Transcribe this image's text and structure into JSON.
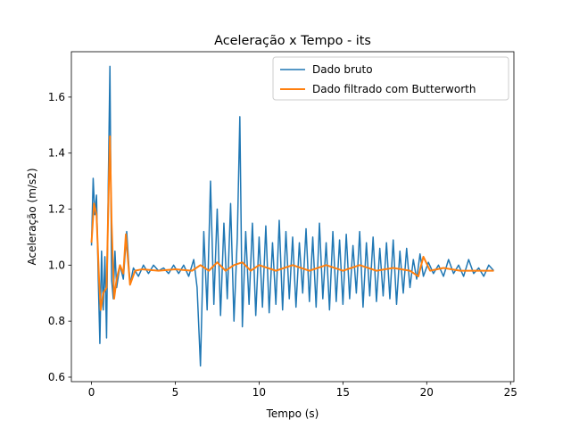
{
  "chart_data": {
    "type": "line",
    "title": "Aceleração x Tempo - its",
    "x_label": "Tempo (s)",
    "y_label": "Aceleração (m/s2)",
    "xlim": [
      -1.2,
      25.2
    ],
    "ylim": [
      0.584,
      1.762
    ],
    "xticks": [
      0,
      5,
      10,
      15,
      20,
      25
    ],
    "yticks": [
      0.6,
      0.8,
      {
        "value": 1,
        "label": "1.0"
      },
      1.2,
      1.4,
      1.6
    ],
    "grid": false,
    "legend": "upper right",
    "series": [
      {
        "name": "Dado bruto",
        "color": "#1f77b4",
        "width": 1.5,
        "x": [
          0,
          0.1,
          0.2,
          0.3,
          0.4,
          0.5,
          0.6,
          0.7,
          0.8,
          0.9,
          1.0,
          1.1,
          1.2,
          1.3,
          1.4,
          1.5,
          1.7,
          1.9,
          2.1,
          2.3,
          2.5,
          2.8,
          3.1,
          3.4,
          3.7,
          4.0,
          4.3,
          4.6,
          4.9,
          5.2,
          5.5,
          5.8,
          6.1,
          6.3,
          6.5,
          6.7,
          6.9,
          7.1,
          7.3,
          7.5,
          7.7,
          7.9,
          8.1,
          8.3,
          8.5,
          8.7,
          8.85,
          9.0,
          9.2,
          9.4,
          9.6,
          9.8,
          10.0,
          10.2,
          10.4,
          10.6,
          10.8,
          11.0,
          11.2,
          11.4,
          11.6,
          11.8,
          12.0,
          12.2,
          12.4,
          12.6,
          12.8,
          13.0,
          13.2,
          13.4,
          13.6,
          13.8,
          14.0,
          14.2,
          14.4,
          14.6,
          14.8,
          15.0,
          15.2,
          15.4,
          15.6,
          15.8,
          16.0,
          16.2,
          16.4,
          16.6,
          16.8,
          17.0,
          17.2,
          17.4,
          17.6,
          17.8,
          18.0,
          18.2,
          18.4,
          18.6,
          18.8,
          19.0,
          19.2,
          19.4,
          19.6,
          19.8,
          20.1,
          20.4,
          20.7,
          21.0,
          21.3,
          21.6,
          21.9,
          22.2,
          22.5,
          22.8,
          23.1,
          23.4,
          23.7,
          24.0
        ],
        "values": [
          1.07,
          1.31,
          1.18,
          1.25,
          0.96,
          0.72,
          1.05,
          0.84,
          1.03,
          0.74,
          1.28,
          1.71,
          0.95,
          0.88,
          1.05,
          0.92,
          1.0,
          0.95,
          1.12,
          0.93,
          0.99,
          0.96,
          1.0,
          0.97,
          1.0,
          0.98,
          0.99,
          0.97,
          1.0,
          0.97,
          1.0,
          0.96,
          1.02,
          0.92,
          0.64,
          1.12,
          0.84,
          1.3,
          0.86,
          1.2,
          0.82,
          1.15,
          0.88,
          1.22,
          0.8,
          1.1,
          1.53,
          0.78,
          1.12,
          0.86,
          1.15,
          0.82,
          1.1,
          0.85,
          1.14,
          0.83,
          1.08,
          0.86,
          1.16,
          0.84,
          1.12,
          0.88,
          1.1,
          0.85,
          1.08,
          0.9,
          1.13,
          0.87,
          1.1,
          0.85,
          1.15,
          0.88,
          1.08,
          0.84,
          1.12,
          0.87,
          1.09,
          0.86,
          1.11,
          0.88,
          1.07,
          0.9,
          1.12,
          0.85,
          1.08,
          0.89,
          1.1,
          0.87,
          1.06,
          0.89,
          1.08,
          0.88,
          1.09,
          0.86,
          1.05,
          0.9,
          1.06,
          0.92,
          1.02,
          0.95,
          1.04,
          0.96,
          1.01,
          0.97,
          1.0,
          0.96,
          1.02,
          0.97,
          1.0,
          0.96,
          1.02,
          0.97,
          0.99,
          0.96,
          1.0,
          0.98
        ]
      },
      {
        "name": "Dado filtrado com Butterworth",
        "color": "#ff7f0e",
        "width": 2,
        "x": [
          0,
          0.15,
          0.3,
          0.45,
          0.55,
          0.7,
          0.9,
          1.0,
          1.1,
          1.2,
          1.35,
          1.5,
          1.7,
          1.9,
          2.05,
          2.3,
          2.6,
          3.0,
          4,
          5,
          6,
          6.5,
          7,
          7.5,
          8,
          8.5,
          9,
          9.5,
          10,
          11,
          12,
          13,
          14,
          15,
          16,
          17,
          18,
          19,
          19.5,
          19.8,
          20.2,
          21,
          22,
          23,
          24
        ],
        "values": [
          1.08,
          1.22,
          1.18,
          0.95,
          0.84,
          0.9,
          0.92,
          1.2,
          1.46,
          1.15,
          0.88,
          0.95,
          1.0,
          0.97,
          1.11,
          0.93,
          0.98,
          0.985,
          0.98,
          0.985,
          0.98,
          1.0,
          0.98,
          1.01,
          0.98,
          1.0,
          1.01,
          0.98,
          1.0,
          0.98,
          1.0,
          0.98,
          1.0,
          0.98,
          1.0,
          0.98,
          0.99,
          0.98,
          0.96,
          1.03,
          0.98,
          0.99,
          0.98,
          0.98,
          0.98
        ]
      }
    ]
  }
}
